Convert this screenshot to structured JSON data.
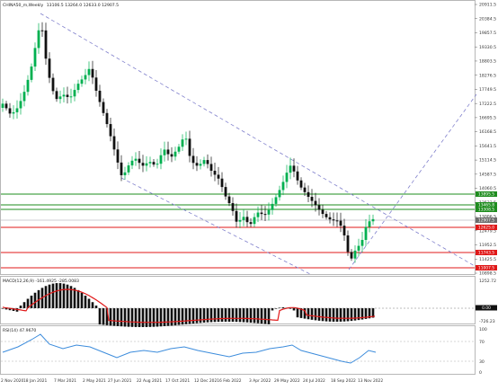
{
  "header": {
    "symbol": "CHINA50_m,Weekly",
    "ohlc": "13106.5 13264.0 12633.0 12907.5"
  },
  "price_axis": {
    "ticks": [
      "20911.5",
      "20384.5",
      "19857.5",
      "19330.5",
      "18803.5",
      "18276.5",
      "17749.5",
      "17222.5",
      "16695.5",
      "16168.5",
      "15641.5",
      "15114.5",
      "14587.5",
      "14060.5",
      "13533.5",
      "13006.5",
      "12479.5",
      "11952.5",
      "11425.5",
      "10898.5"
    ],
    "tags": [
      {
        "text": "13895.5",
        "color": "#1e8c1e"
      },
      {
        "text": "13465.8",
        "color": "#1e8c1e"
      },
      {
        "text": "13308.5",
        "color": "#1e8c1e"
      },
      {
        "text": "12907.5",
        "color": "#6c6c6c"
      },
      {
        "text": "12625.0",
        "color": "#e01818"
      },
      {
        "text": "11743.5",
        "color": "#e01818"
      },
      {
        "text": "11007.5",
        "color": "#e01818"
      }
    ]
  },
  "macd": {
    "label": "MACD(12,26,9) -161.4925 -285.0083",
    "ticks": [
      "1252.72",
      "0.00",
      "-726.23"
    ]
  },
  "rsi": {
    "label": "RSI(14) 47.9670",
    "ticks": [
      "100",
      "70",
      "30",
      "0"
    ]
  },
  "date_axis": {
    "labels": [
      "2 Nov 2020",
      "18 Jan 2021",
      "7 Mar 2021",
      "2 May 2021",
      "27 Jun 2021",
      "22 Aug 2021",
      "17 Oct 2021",
      "12 Dec 2021",
      "6 Feb 2022",
      "3 Apr 2022",
      "29 May 2022",
      "24 Jul 2022",
      "18 Sep 2022",
      "13 Nov 2022"
    ]
  },
  "colors": {
    "bull": "#00b050",
    "bear": "#111111",
    "channel": "#8080cc",
    "support": "#e01818",
    "resistance": "#1e8c1e",
    "macd_signal": "#e01818",
    "rsi_line": "#3c8cdc"
  }
}
